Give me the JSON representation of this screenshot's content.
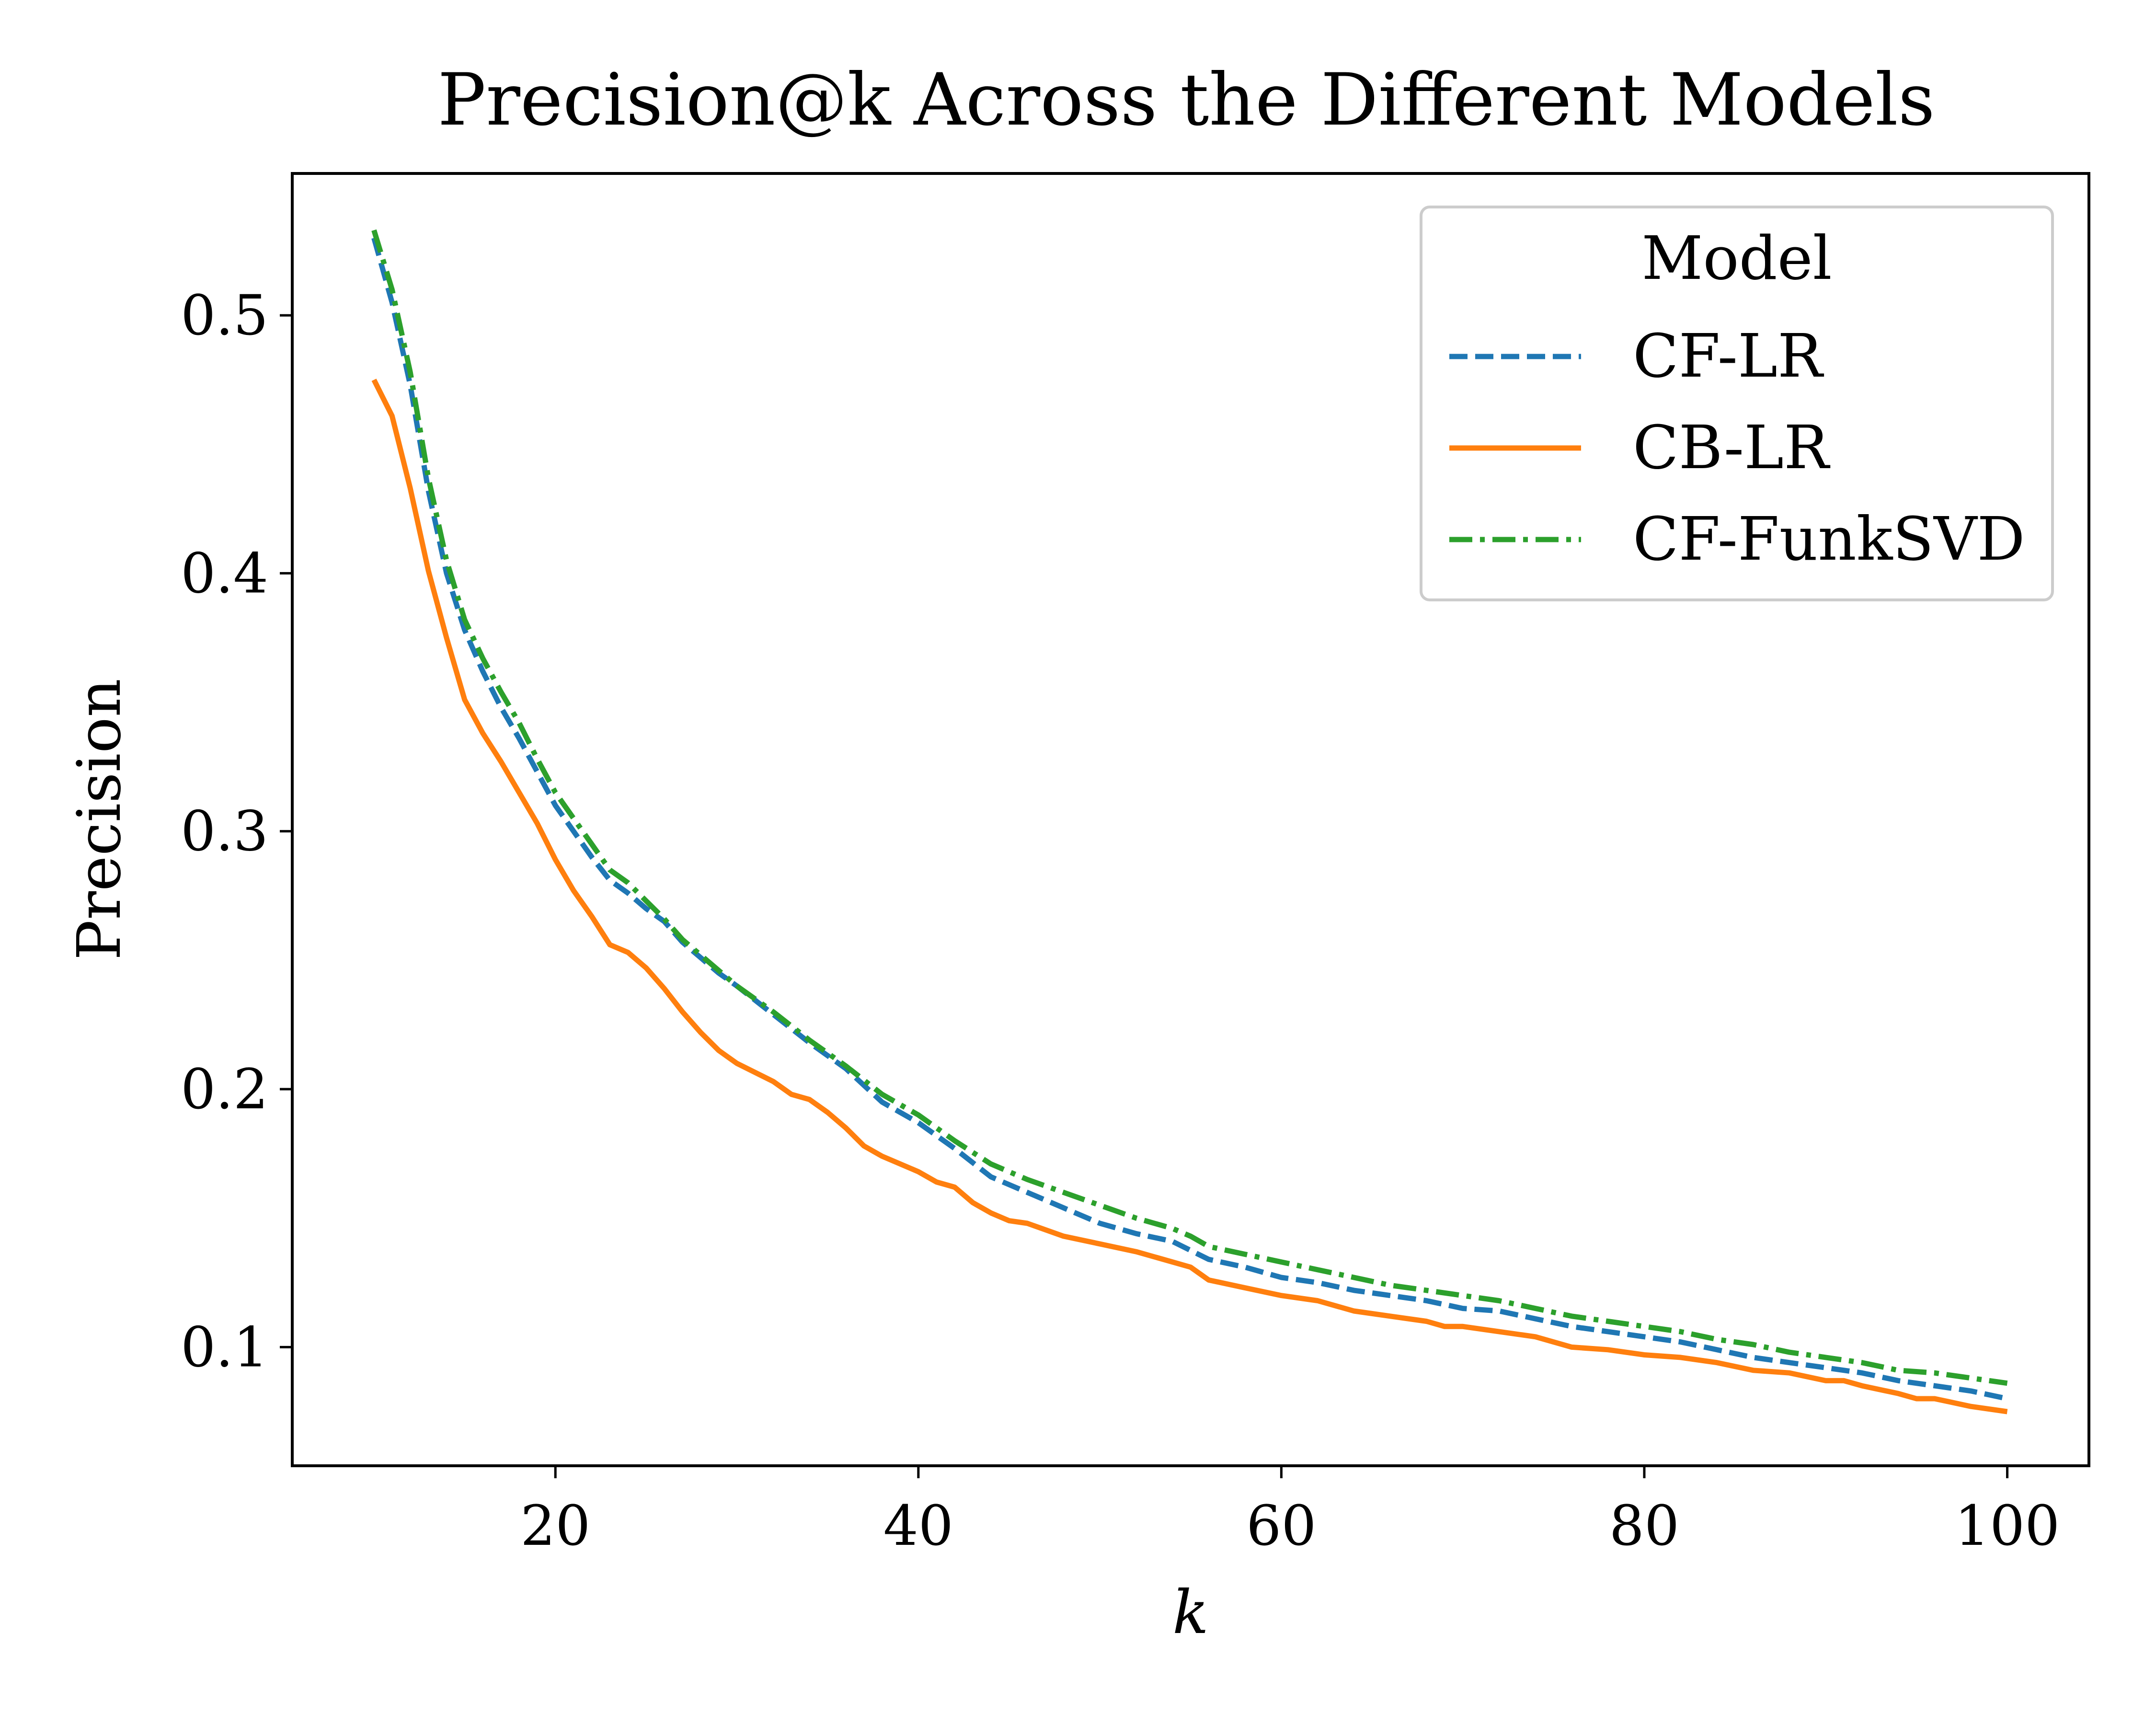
{
  "chart_data": {
    "type": "line",
    "title": "Precision@k Across the Different Models",
    "xlabel": "k",
    "ylabel": "Precision",
    "xlim": [
      5.5,
      104.5
    ],
    "ylim": [
      0.054,
      0.555
    ],
    "xticks": [
      20,
      40,
      60,
      80,
      100
    ],
    "yticks": [
      0.1,
      0.2,
      0.3,
      0.4,
      0.5
    ],
    "grid": false,
    "legend": {
      "title": "Model",
      "placement": "top-right"
    },
    "series_keys": [
      {
        "name": "CF-LR",
        "points": [
          [
            10,
            0.53
          ],
          [
            11,
            0.505
          ],
          [
            12,
            0.473
          ],
          [
            13,
            0.432
          ],
          [
            14,
            0.4
          ],
          [
            15,
            0.378
          ],
          [
            16,
            0.362
          ],
          [
            17,
            0.348
          ],
          [
            18,
            0.336
          ],
          [
            19,
            0.323
          ],
          [
            20,
            0.31
          ],
          [
            21,
            0.3
          ],
          [
            22,
            0.29
          ],
          [
            23,
            0.281
          ],
          [
            24,
            0.276
          ],
          [
            25,
            0.27
          ],
          [
            26,
            0.265
          ],
          [
            27,
            0.257
          ],
          [
            28,
            0.251
          ],
          [
            29,
            0.245
          ],
          [
            30,
            0.24
          ],
          [
            32,
            0.229
          ],
          [
            34,
            0.218
          ],
          [
            36,
            0.208
          ],
          [
            38,
            0.195
          ],
          [
            40,
            0.187
          ],
          [
            42,
            0.177
          ],
          [
            44,
            0.166
          ],
          [
            46,
            0.16
          ],
          [
            48,
            0.154
          ],
          [
            50,
            0.148
          ],
          [
            52,
            0.144
          ],
          [
            54,
            0.141
          ],
          [
            56,
            0.134
          ],
          [
            58,
            0.131
          ],
          [
            60,
            0.127
          ],
          [
            62,
            0.125
          ],
          [
            64,
            0.122
          ],
          [
            66,
            0.12
          ],
          [
            68,
            0.118
          ],
          [
            70,
            0.115
          ],
          [
            72,
            0.114
          ],
          [
            74,
            0.111
          ],
          [
            76,
            0.108
          ],
          [
            78,
            0.106
          ],
          [
            80,
            0.104
          ],
          [
            82,
            0.102
          ],
          [
            84,
            0.099
          ],
          [
            86,
            0.096
          ],
          [
            88,
            0.094
          ],
          [
            90,
            0.092
          ],
          [
            92,
            0.09
          ],
          [
            94,
            0.087
          ],
          [
            96,
            0.085
          ],
          [
            98,
            0.083
          ],
          [
            100,
            0.08
          ]
        ]
      },
      {
        "name": "CB-LR",
        "points": [
          [
            10,
            0.475
          ],
          [
            11,
            0.461
          ],
          [
            12,
            0.433
          ],
          [
            13,
            0.401
          ],
          [
            14,
            0.375
          ],
          [
            15,
            0.351
          ],
          [
            16,
            0.338
          ],
          [
            17,
            0.327
          ],
          [
            18,
            0.315
          ],
          [
            19,
            0.303
          ],
          [
            20,
            0.289
          ],
          [
            21,
            0.277
          ],
          [
            22,
            0.267
          ],
          [
            23,
            0.256
          ],
          [
            24,
            0.253
          ],
          [
            25,
            0.247
          ],
          [
            26,
            0.239
          ],
          [
            27,
            0.23
          ],
          [
            28,
            0.222
          ],
          [
            29,
            0.215
          ],
          [
            30,
            0.21
          ],
          [
            32,
            0.203
          ],
          [
            33,
            0.198
          ],
          [
            34,
            0.196
          ],
          [
            35,
            0.191
          ],
          [
            36,
            0.185
          ],
          [
            37,
            0.178
          ],
          [
            38,
            0.174
          ],
          [
            40,
            0.168
          ],
          [
            41,
            0.164
          ],
          [
            42,
            0.162
          ],
          [
            43,
            0.156
          ],
          [
            44,
            0.152
          ],
          [
            45,
            0.149
          ],
          [
            46,
            0.148
          ],
          [
            48,
            0.143
          ],
          [
            50,
            0.14
          ],
          [
            52,
            0.137
          ],
          [
            54,
            0.133
          ],
          [
            55,
            0.131
          ],
          [
            56,
            0.126
          ],
          [
            58,
            0.123
          ],
          [
            60,
            0.12
          ],
          [
            62,
            0.118
          ],
          [
            64,
            0.114
          ],
          [
            66,
            0.112
          ],
          [
            68,
            0.11
          ],
          [
            69,
            0.108
          ],
          [
            70,
            0.108
          ],
          [
            72,
            0.106
          ],
          [
            74,
            0.104
          ],
          [
            76,
            0.1
          ],
          [
            78,
            0.099
          ],
          [
            80,
            0.097
          ],
          [
            82,
            0.096
          ],
          [
            84,
            0.094
          ],
          [
            86,
            0.091
          ],
          [
            88,
            0.09
          ],
          [
            90,
            0.087
          ],
          [
            91,
            0.087
          ],
          [
            92,
            0.085
          ],
          [
            94,
            0.082
          ],
          [
            95,
            0.08
          ],
          [
            96,
            0.08
          ],
          [
            98,
            0.077
          ],
          [
            100,
            0.075
          ]
        ]
      },
      {
        "name": "CF-FunkSVD",
        "points": [
          [
            10,
            0.533
          ],
          [
            11,
            0.51
          ],
          [
            12,
            0.478
          ],
          [
            13,
            0.437
          ],
          [
            14,
            0.405
          ],
          [
            15,
            0.382
          ],
          [
            16,
            0.367
          ],
          [
            17,
            0.354
          ],
          [
            18,
            0.342
          ],
          [
            19,
            0.328
          ],
          [
            20,
            0.315
          ],
          [
            21,
            0.305
          ],
          [
            22,
            0.295
          ],
          [
            23,
            0.285
          ],
          [
            24,
            0.28
          ],
          [
            25,
            0.273
          ],
          [
            26,
            0.266
          ],
          [
            27,
            0.258
          ],
          [
            28,
            0.252
          ],
          [
            29,
            0.246
          ],
          [
            30,
            0.24
          ],
          [
            32,
            0.23
          ],
          [
            34,
            0.219
          ],
          [
            36,
            0.209
          ],
          [
            38,
            0.198
          ],
          [
            40,
            0.19
          ],
          [
            42,
            0.18
          ],
          [
            44,
            0.171
          ],
          [
            46,
            0.165
          ],
          [
            48,
            0.16
          ],
          [
            50,
            0.155
          ],
          [
            52,
            0.15
          ],
          [
            54,
            0.146
          ],
          [
            55,
            0.143
          ],
          [
            56,
            0.139
          ],
          [
            58,
            0.136
          ],
          [
            60,
            0.133
          ],
          [
            62,
            0.13
          ],
          [
            64,
            0.127
          ],
          [
            66,
            0.124
          ],
          [
            68,
            0.122
          ],
          [
            70,
            0.12
          ],
          [
            72,
            0.118
          ],
          [
            74,
            0.115
          ],
          [
            76,
            0.112
          ],
          [
            78,
            0.11
          ],
          [
            80,
            0.108
          ],
          [
            82,
            0.106
          ],
          [
            84,
            0.103
          ],
          [
            86,
            0.101
          ],
          [
            88,
            0.098
          ],
          [
            90,
            0.096
          ],
          [
            92,
            0.094
          ],
          [
            94,
            0.091
          ],
          [
            96,
            0.09
          ],
          [
            98,
            0.088
          ],
          [
            100,
            0.086
          ]
        ]
      }
    ],
    "series_style": {
      "CF-LR": {
        "color": "#1f77b4",
        "dash": "dashed"
      },
      "CB-LR": {
        "color": "#ff7f0e",
        "dash": "solid"
      },
      "CF-FunkSVD": {
        "color": "#2ca02c",
        "dash": "dashdot"
      }
    }
  }
}
